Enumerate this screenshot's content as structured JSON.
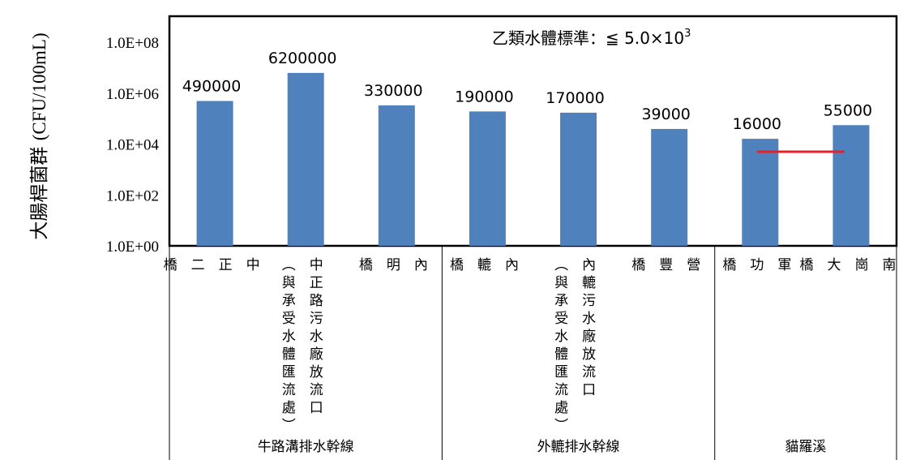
{
  "chart_data": {
    "type": "bar",
    "y_scale": "log",
    "ylim": [
      1,
      100000000
    ],
    "yticks": [
      "1.0E+00",
      "1.0E+02",
      "1.0E+04",
      "1.0E+06",
      "1.0E+08"
    ],
    "ylabel": "大腸桿菌群 (CFU/100mL)",
    "categories": [
      [
        "中",
        "正",
        "二",
        "橋"
      ],
      [
        "中正路污水廠放流口",
        "︵與承受水體匯流處︶"
      ],
      [
        "內",
        "明",
        "橋"
      ],
      [
        "內",
        "轆",
        "橋"
      ],
      [
        "內轆污水廠放流口",
        "︵與承受水體匯流處︶"
      ],
      [
        "營",
        "豐",
        "橋"
      ],
      [
        "軍",
        "功",
        "橋"
      ],
      [
        "南",
        "崗",
        "大",
        "橋"
      ]
    ],
    "values": [
      490000,
      6200000,
      330000,
      190000,
      170000,
      39000,
      16000,
      55000
    ],
    "data_labels": [
      "490000",
      "6200000",
      "330000",
      "190000",
      "170000",
      "39000",
      "16000",
      "55000"
    ],
    "groups": [
      {
        "name": "牛路溝排水幹線",
        "span": [
          0,
          2
        ]
      },
      {
        "name": "外轆排水幹線",
        "span": [
          3,
          5
        ]
      },
      {
        "name": "貓羅溪",
        "span": [
          6,
          7
        ]
      }
    ],
    "standard": {
      "label_prefix": "乙類水體標準：≦ 5.0×10",
      "label_exp": "3",
      "value": 5000,
      "from_index": 6,
      "to_index": 7
    },
    "colors": {
      "bar": "#4F81BD",
      "standard_line": "#E8202A",
      "axis": "#000000"
    }
  }
}
